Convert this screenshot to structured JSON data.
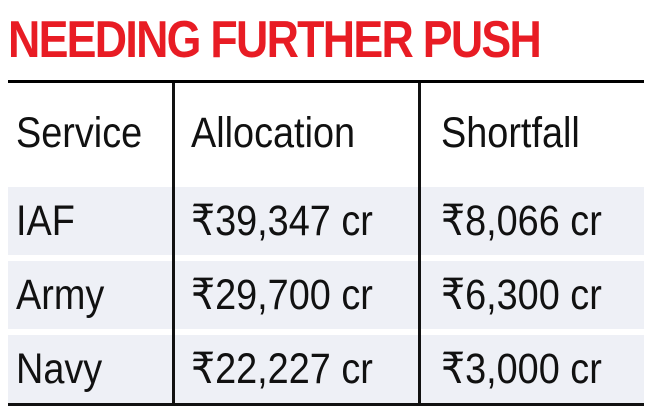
{
  "title": "NEEDING FURTHER PUSH",
  "chart_data": {
    "type": "table",
    "title": "NEEDING FURTHER PUSH",
    "columns": [
      "Service",
      "Allocation",
      "Shortfall"
    ],
    "rows": [
      [
        "IAF",
        "₹39,347 cr",
        "₹8,066 cr"
      ],
      [
        "Army",
        "₹29,700 cr",
        "₹6,300 cr"
      ],
      [
        "Navy",
        "₹22,227 cr",
        "₹3,000 cr"
      ]
    ]
  },
  "colors": {
    "title": "#e81c24",
    "row_shade": "#eef0f6",
    "text": "#111111",
    "rule": "#000000"
  }
}
